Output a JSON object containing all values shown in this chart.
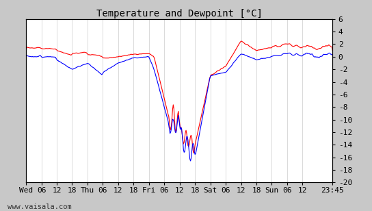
{
  "title": "Temperature and Dewpoint [°C]",
  "ylim": [
    -20,
    6
  ],
  "xlim_hours": [
    0,
    119.75
  ],
  "x_tick_labels": [
    "Wed",
    "06",
    "12",
    "18",
    "Thu",
    "06",
    "12",
    "18",
    "Fri",
    "06",
    "12",
    "18",
    "Sat",
    "06",
    "12",
    "18",
    "Sun",
    "06",
    "12",
    "23:45"
  ],
  "x_tick_positions": [
    0,
    6,
    12,
    18,
    24,
    30,
    36,
    42,
    48,
    54,
    60,
    66,
    72,
    78,
    84,
    90,
    96,
    102,
    108,
    119.75
  ],
  "plot_bg_color": "#ffffff",
  "fig_bg_color": "#c8c8c8",
  "grid_color": "#cccccc",
  "temp_color": "#ff0000",
  "dewp_color": "#0000ff",
  "line_width": 0.8,
  "watermark": "www.vaisala.com",
  "title_fontsize": 10,
  "tick_fontsize": 8,
  "watermark_fontsize": 7.5
}
